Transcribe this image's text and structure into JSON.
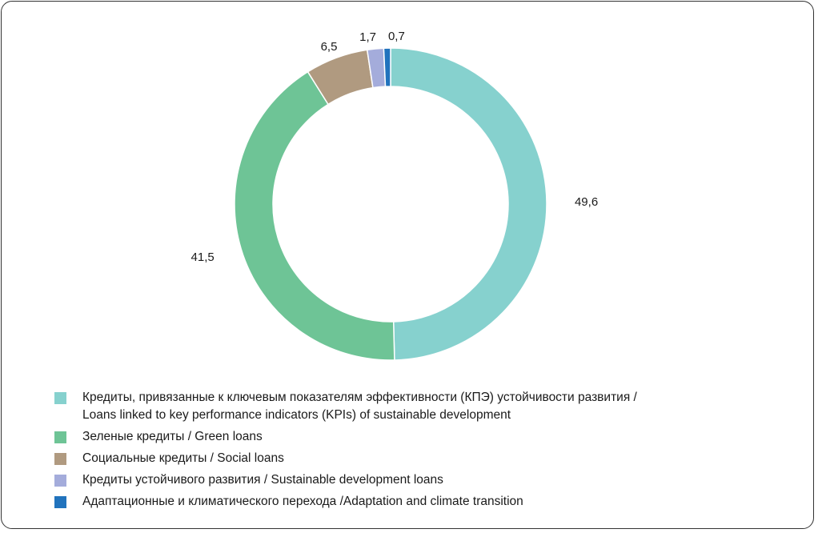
{
  "chart_data": {
    "type": "pie",
    "donut": true,
    "start_angle_deg": 0,
    "direction": "clockwise",
    "series": [
      {
        "name": "Кредиты, привязанные к ключевым показателям эффективности (КПЭ) устойчивости развития /",
        "name_line2": "Loans linked to key performance indicators (KPIs) of sustainable development",
        "value": 49.6,
        "label": "49,6",
        "color": "#86d1ce"
      },
      {
        "name": "Зеленые кредиты / Green loans",
        "value": 41.5,
        "label": "41,5",
        "color": "#6ec496"
      },
      {
        "name": "Социальные кредиты / Social loans",
        "value": 6.5,
        "label": "6,5",
        "color": "#b09a80"
      },
      {
        "name": "Кредиты устойчивого развития / Sustainable development loans",
        "value": 1.7,
        "label": "1,7",
        "color": "#a4acdb"
      },
      {
        "name": "Адаптационные и климатического перехода /Adaptation and climate transition",
        "value": 0.7,
        "label": "0,7",
        "color": "#2173bd"
      }
    ],
    "legend_position": "bottom-left"
  }
}
